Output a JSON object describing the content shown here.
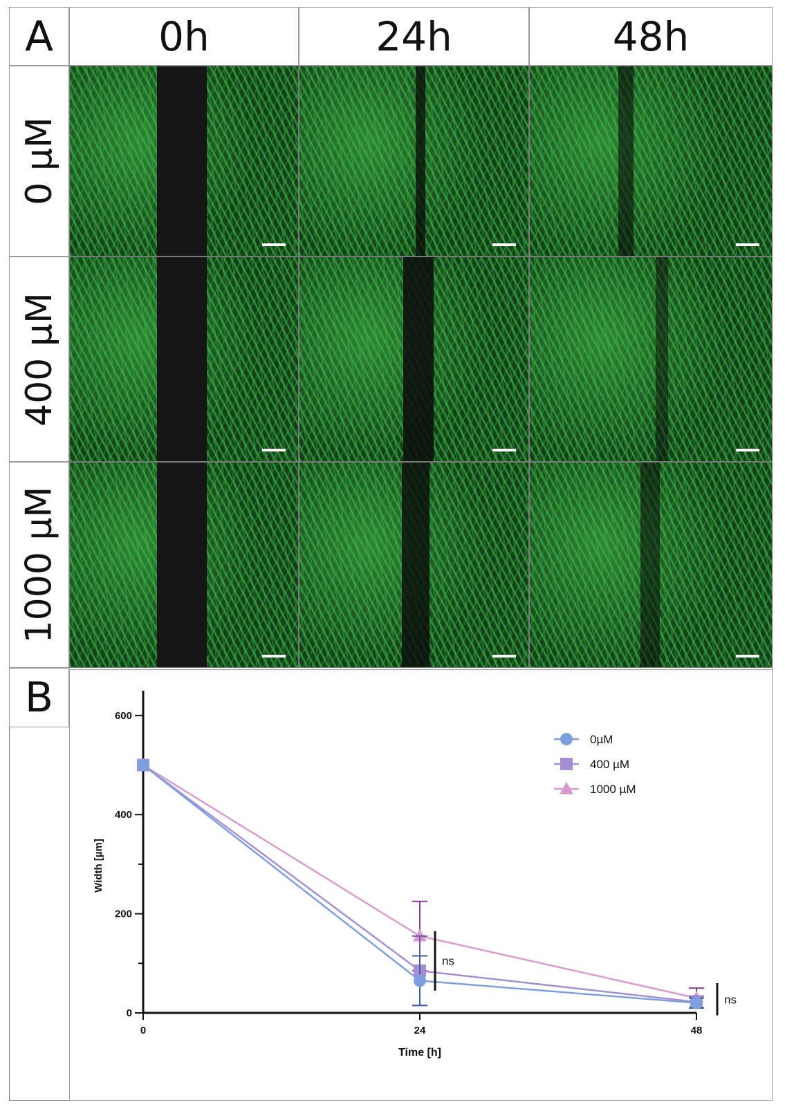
{
  "panel_a": {
    "letter": "A",
    "columns": [
      "0h",
      "24h",
      "48h"
    ],
    "rows": [
      "0 µM",
      "400 µM",
      "1000 µM"
    ],
    "wound_gap_visible": [
      [
        true,
        true,
        true
      ],
      [
        true,
        true,
        true
      ],
      [
        true,
        true,
        true
      ]
    ]
  },
  "panel_b": {
    "letter": "B"
  },
  "chart_data": {
    "type": "line",
    "title": "",
    "xlabel": "Time [h]",
    "ylabel": "Width [µm]",
    "x": [
      0,
      24,
      48
    ],
    "x_ticks": [
      "0",
      "24",
      "48"
    ],
    "y_ticks": [
      "0",
      "200",
      "400",
      "600"
    ],
    "ylim": [
      0,
      650
    ],
    "xlim": [
      0,
      48
    ],
    "legend_position": "top-right",
    "series": [
      {
        "name": "0µM",
        "marker": "circle",
        "color": "#7f9fdc",
        "values": [
          500,
          65,
          20
        ],
        "errors": [
          0,
          50,
          10
        ]
      },
      {
        "name": "400 µM",
        "marker": "square",
        "color": "#a58fd1",
        "values": [
          500,
          85,
          22
        ],
        "errors": [
          0,
          70,
          12
        ]
      },
      {
        "name": "1000 µM",
        "marker": "triangle",
        "color": "#d79ccf",
        "values": [
          500,
          155,
          30
        ],
        "errors": [
          0,
          70,
          20
        ]
      }
    ],
    "annotations": [
      {
        "x": 24,
        "text": "ns"
      },
      {
        "x": 48,
        "text": "ns"
      }
    ]
  }
}
